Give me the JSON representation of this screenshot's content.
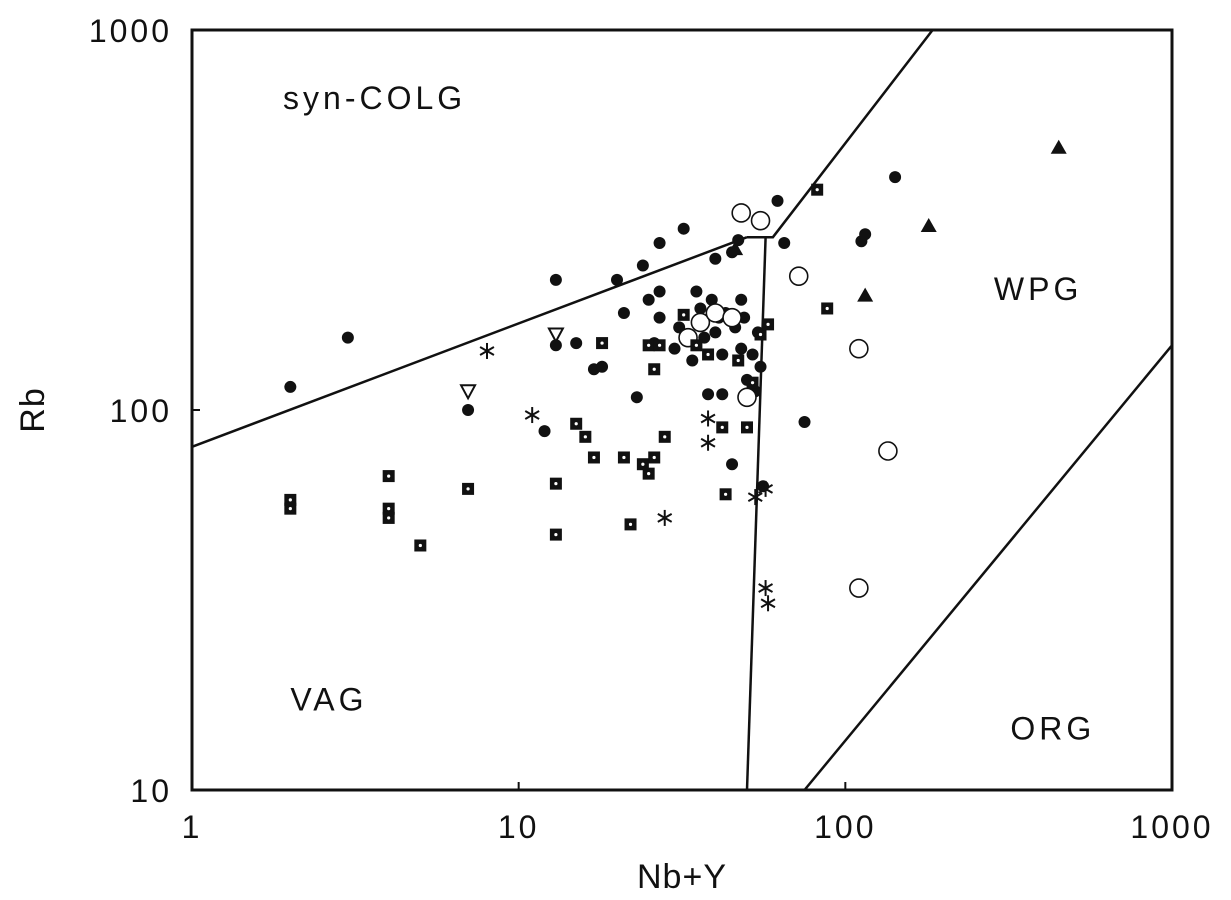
{
  "chart_data": {
    "type": "scatter",
    "title": "",
    "xlabel": "Nb+Y",
    "ylabel": "Rb",
    "xscale": "log",
    "yscale": "log",
    "xlim": [
      1,
      1000
    ],
    "ylim": [
      10,
      1000
    ],
    "x_ticks": [
      "1",
      "10",
      "100",
      "1000"
    ],
    "y_ticks": [
      "10",
      "100",
      "1000"
    ],
    "grid": false,
    "legend": "none",
    "colors": {
      "ink": "#111111",
      "background": "#ffffff"
    },
    "field_labels": [
      {
        "text": "syn-COLG",
        "x": 1.9,
        "y": 620
      },
      {
        "text": "WPG",
        "x": 285,
        "y": 195
      },
      {
        "text": "VAG",
        "x": 2.0,
        "y": 16.2
      },
      {
        "text": "ORG",
        "x": 320,
        "y": 13.6
      }
    ],
    "boundaries": [
      {
        "name": "syn-COLG / VAG",
        "points": [
          [
            1,
            80
          ],
          [
            50,
            285
          ]
        ]
      },
      {
        "name": "syn-COLG / WPG",
        "points": [
          [
            50,
            285
          ],
          [
            60,
            285
          ],
          [
            185,
            1000
          ]
        ]
      },
      {
        "name": "VAG / WPG",
        "points": [
          [
            50,
            10
          ],
          [
            57,
            285
          ]
        ]
      },
      {
        "name": "WPG / ORG",
        "points": [
          [
            75,
            10
          ],
          [
            1000,
            148
          ]
        ]
      }
    ],
    "series": [
      {
        "marker": "filled-circle",
        "points": [
          [
            2,
            115
          ],
          [
            3,
            155
          ],
          [
            7,
            100
          ],
          [
            12,
            88
          ],
          [
            13,
            220
          ],
          [
            13,
            148
          ],
          [
            15,
            150
          ],
          [
            17,
            128
          ],
          [
            18,
            130
          ],
          [
            20,
            220
          ],
          [
            21,
            180
          ],
          [
            23,
            108
          ],
          [
            24,
            240
          ],
          [
            25,
            195
          ],
          [
            26,
            150
          ],
          [
            27,
            275
          ],
          [
            27,
            205
          ],
          [
            27,
            175
          ],
          [
            30,
            145
          ],
          [
            31,
            165
          ],
          [
            32,
            300
          ],
          [
            34,
            135
          ],
          [
            35,
            205
          ],
          [
            36,
            185
          ],
          [
            37,
            155
          ],
          [
            38,
            110
          ],
          [
            39,
            195
          ],
          [
            40,
            250
          ],
          [
            40,
            160
          ],
          [
            41,
            175
          ],
          [
            42,
            110
          ],
          [
            42,
            140
          ],
          [
            43,
            180
          ],
          [
            45,
            260
          ],
          [
            45,
            72
          ],
          [
            46,
            165
          ],
          [
            47,
            280
          ],
          [
            48,
            195
          ],
          [
            48,
            145
          ],
          [
            49,
            175
          ],
          [
            50,
            120
          ],
          [
            52,
            140
          ],
          [
            53,
            112
          ],
          [
            54,
            160
          ],
          [
            55,
            130
          ],
          [
            56,
            63
          ],
          [
            62,
            355
          ],
          [
            65,
            275
          ],
          [
            75,
            93
          ],
          [
            112,
            278
          ],
          [
            115,
            290
          ],
          [
            142,
            410
          ]
        ]
      },
      {
        "marker": "open-circle",
        "points": [
          [
            48,
            330
          ],
          [
            55,
            315
          ],
          [
            33,
            155
          ],
          [
            36,
            170
          ],
          [
            40,
            180
          ],
          [
            45,
            175
          ],
          [
            50,
            108
          ],
          [
            72,
            225
          ],
          [
            110,
            145
          ],
          [
            135,
            78
          ],
          [
            110,
            34
          ]
        ]
      },
      {
        "marker": "dotted-square",
        "points": [
          [
            2,
            58
          ],
          [
            2,
            55
          ],
          [
            4,
            67
          ],
          [
            4,
            55
          ],
          [
            4,
            52
          ],
          [
            5,
            44
          ],
          [
            7,
            62
          ],
          [
            13,
            64
          ],
          [
            13,
            47
          ],
          [
            15,
            92
          ],
          [
            16,
            85
          ],
          [
            17,
            75
          ],
          [
            18,
            150
          ],
          [
            21,
            75
          ],
          [
            22,
            50
          ],
          [
            24,
            72
          ],
          [
            25,
            68
          ],
          [
            25,
            148
          ],
          [
            26,
            75
          ],
          [
            26,
            128
          ],
          [
            27,
            148
          ],
          [
            28,
            85
          ],
          [
            32,
            178
          ],
          [
            35,
            148
          ],
          [
            38,
            140
          ],
          [
            42,
            90
          ],
          [
            43,
            60
          ],
          [
            47,
            135
          ],
          [
            50,
            90
          ],
          [
            52,
            118
          ],
          [
            55,
            158
          ],
          [
            58,
            168
          ],
          [
            82,
            380
          ],
          [
            88,
            185
          ]
        ]
      },
      {
        "marker": "asterisk",
        "points": [
          [
            8,
            143
          ],
          [
            11,
            97
          ],
          [
            28,
            52
          ],
          [
            38,
            95
          ],
          [
            38,
            82
          ],
          [
            53,
            59
          ],
          [
            57,
            62
          ],
          [
            57,
            34
          ],
          [
            58,
            31
          ]
        ]
      },
      {
        "marker": "filled-triangle",
        "points": [
          [
            46,
            265
          ],
          [
            115,
            200
          ],
          [
            180,
            305
          ],
          [
            450,
            490
          ]
        ]
      },
      {
        "marker": "down-triangle",
        "points": [
          [
            7,
            112
          ],
          [
            13,
            158
          ]
        ]
      }
    ]
  }
}
